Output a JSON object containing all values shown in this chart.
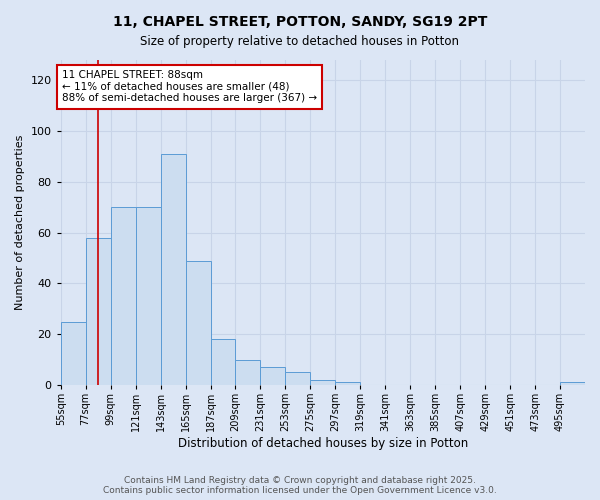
{
  "title": "11, CHAPEL STREET, POTTON, SANDY, SG19 2PT",
  "subtitle": "Size of property relative to detached houses in Potton",
  "xlabel": "Distribution of detached houses by size in Potton",
  "ylabel": "Number of detached properties",
  "bin_starts": [
    55,
    77,
    99,
    121,
    143,
    165,
    187,
    209,
    231,
    253,
    275,
    297,
    319,
    341,
    363,
    385,
    407,
    429,
    451,
    473,
    495
  ],
  "bin_width": 22,
  "counts": [
    25,
    58,
    70,
    70,
    91,
    49,
    18,
    10,
    7,
    5,
    2,
    1,
    0,
    0,
    0,
    0,
    0,
    0,
    0,
    0,
    1
  ],
  "bar_color": "#ccddf0",
  "bar_edge_color": "#5b9bd5",
  "grid_color": "#c8d4e8",
  "background_color": "#dce6f5",
  "plot_bg_color": "#dce6f5",
  "property_size": 88,
  "red_line_color": "#cc0000",
  "annotation_line1": "11 CHAPEL STREET: 88sqm",
  "annotation_line2": "← 11% of detached houses are smaller (48)",
  "annotation_line3": "88% of semi-detached houses are larger (367) →",
  "annotation_box_color": "#ffffff",
  "annotation_border_color": "#cc0000",
  "footer_line1": "Contains HM Land Registry data © Crown copyright and database right 2025.",
  "footer_line2": "Contains public sector information licensed under the Open Government Licence v3.0.",
  "title_fontsize": 10,
  "subtitle_fontsize": 8.5,
  "ylabel_fontsize": 8,
  "xlabel_fontsize": 8.5,
  "tick_fontsize": 7,
  "annotation_fontsize": 7.5,
  "footer_fontsize": 6.5,
  "yticks": [
    0,
    20,
    40,
    60,
    80,
    100,
    120
  ],
  "ylim": [
    0,
    128
  ]
}
